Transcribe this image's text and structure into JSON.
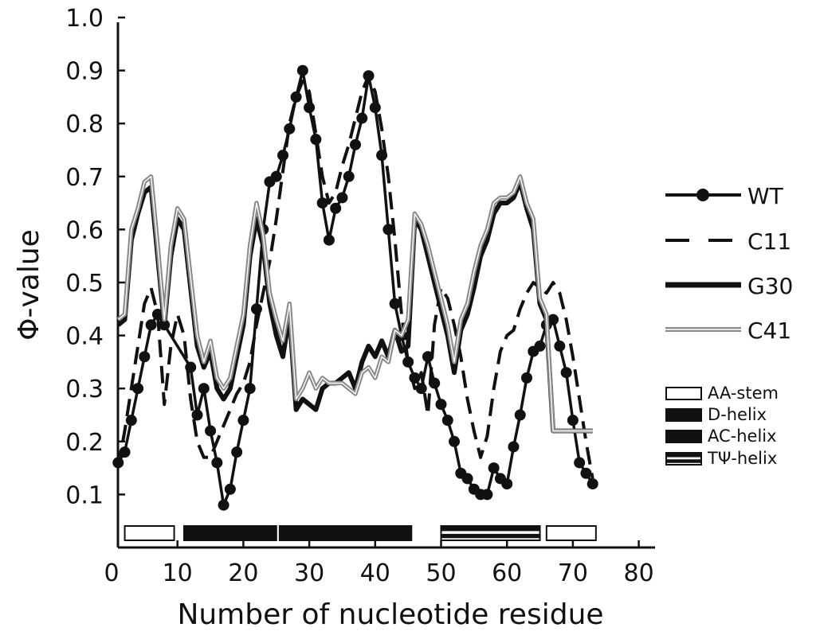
{
  "chart_data": {
    "type": "line",
    "xlabel": "Number of nucleotide residue",
    "ylabel": "Φ-value",
    "xlim": [
      0,
      80
    ],
    "ylim": [
      0.0,
      1.0
    ],
    "x_ticks": [
      0,
      10,
      20,
      30,
      40,
      50,
      60,
      70,
      80
    ],
    "y_ticks": [
      0.1,
      0.2,
      0.3,
      0.4,
      0.5,
      0.6,
      0.7,
      0.8,
      0.9,
      1.0
    ],
    "grid": false,
    "legend_position": "right",
    "series": [
      {
        "name": "WT",
        "color": "#111111",
        "style": "solid-markers",
        "x": [
          1,
          2,
          3,
          4,
          5,
          6,
          7,
          8,
          12,
          13,
          14,
          15,
          16,
          17,
          18,
          19,
          20,
          21,
          22,
          23,
          24,
          25,
          26,
          27,
          28,
          29,
          30,
          31,
          32,
          33,
          34,
          35,
          36,
          37,
          38,
          39,
          40,
          41,
          42,
          43,
          44,
          45,
          46,
          47,
          48,
          49,
          50,
          51,
          52,
          53,
          54,
          55,
          56,
          57,
          58,
          59,
          60,
          61,
          62,
          63,
          64,
          65,
          66,
          67,
          68,
          69,
          70,
          71,
          72,
          73
        ],
        "y": [
          0.16,
          0.18,
          0.24,
          0.3,
          0.36,
          0.42,
          0.44,
          0.42,
          0.34,
          0.25,
          0.3,
          0.22,
          0.16,
          0.08,
          0.11,
          0.18,
          0.24,
          0.3,
          0.45,
          0.6,
          0.69,
          0.7,
          0.74,
          0.79,
          0.85,
          0.9,
          0.83,
          0.77,
          0.65,
          0.58,
          0.64,
          0.66,
          0.7,
          0.76,
          0.81,
          0.89,
          0.83,
          0.74,
          0.6,
          0.46,
          0.4,
          0.35,
          0.32,
          0.3,
          0.36,
          0.31,
          0.27,
          0.24,
          0.2,
          0.14,
          0.13,
          0.11,
          0.1,
          0.1,
          0.15,
          0.13,
          0.12,
          0.19,
          0.25,
          0.32,
          0.37,
          0.38,
          0.42,
          0.43,
          0.38,
          0.33,
          0.24,
          0.16,
          0.14,
          0.12
        ]
      },
      {
        "name": "C11",
        "color": "#111111",
        "style": "dashed",
        "x": [
          1,
          2,
          3,
          4,
          5,
          6,
          7,
          8,
          9,
          10,
          11,
          12,
          13,
          14,
          15,
          16,
          17,
          18,
          19,
          20,
          21,
          22,
          23,
          24,
          25,
          26,
          27,
          28,
          29,
          30,
          31,
          32,
          33,
          34,
          35,
          36,
          37,
          38,
          39,
          40,
          41,
          42,
          43,
          44,
          45,
          46,
          47,
          48,
          49,
          50,
          51,
          52,
          53,
          54,
          55,
          56,
          57,
          58,
          59,
          60,
          61,
          62,
          63,
          64,
          65,
          66,
          67,
          68,
          69,
          70,
          71,
          72,
          73
        ],
        "y": [
          0.15,
          0.22,
          0.3,
          0.38,
          0.46,
          0.49,
          0.44,
          0.27,
          0.38,
          0.44,
          0.4,
          0.28,
          0.2,
          0.17,
          0.17,
          0.2,
          0.23,
          0.26,
          0.29,
          0.31,
          0.35,
          0.42,
          0.48,
          0.54,
          0.62,
          0.71,
          0.8,
          0.85,
          0.88,
          0.86,
          0.78,
          0.7,
          0.65,
          0.67,
          0.72,
          0.76,
          0.81,
          0.86,
          0.89,
          0.86,
          0.79,
          0.7,
          0.58,
          0.44,
          0.35,
          0.3,
          0.33,
          0.25,
          0.42,
          0.49,
          0.47,
          0.42,
          0.36,
          0.28,
          0.22,
          0.17,
          0.21,
          0.3,
          0.37,
          0.4,
          0.41,
          0.45,
          0.48,
          0.5,
          0.49,
          0.48,
          0.5,
          0.48,
          0.43,
          0.36,
          0.28,
          0.2,
          0.13
        ]
      },
      {
        "name": "G30",
        "color": "#111111",
        "style": "thick-solid",
        "x": [
          1,
          2,
          3,
          4,
          5,
          6,
          7,
          8,
          9,
          10,
          11,
          12,
          13,
          14,
          15,
          16,
          17,
          18,
          19,
          20,
          21,
          22,
          23,
          24,
          25,
          26,
          27,
          28,
          29,
          30,
          31,
          32,
          33,
          34,
          35,
          36,
          37,
          38,
          39,
          40,
          41,
          42,
          43,
          44,
          45,
          46,
          47,
          48,
          49,
          50,
          51,
          52,
          53,
          54,
          55,
          56,
          57,
          58,
          59,
          60,
          61,
          62,
          63,
          64,
          65,
          66,
          67,
          68,
          69,
          70,
          71,
          72,
          73
        ],
        "y": [
          0.42,
          0.43,
          0.58,
          0.63,
          0.67,
          0.68,
          0.55,
          0.42,
          0.55,
          0.62,
          0.6,
          0.49,
          0.38,
          0.34,
          0.37,
          0.3,
          0.28,
          0.3,
          0.36,
          0.42,
          0.55,
          0.62,
          0.57,
          0.46,
          0.4,
          0.36,
          0.44,
          0.26,
          0.28,
          0.27,
          0.26,
          0.3,
          0.31,
          0.31,
          0.32,
          0.33,
          0.3,
          0.35,
          0.38,
          0.36,
          0.39,
          0.36,
          0.41,
          0.37,
          0.38,
          0.62,
          0.6,
          0.55,
          0.5,
          0.45,
          0.4,
          0.33,
          0.41,
          0.44,
          0.49,
          0.55,
          0.58,
          0.63,
          0.65,
          0.65,
          0.66,
          0.69,
          0.64,
          0.6,
          0.46,
          0.43,
          0.22,
          0.22,
          0.22,
          0.22,
          0.22,
          0.22,
          0.22
        ]
      },
      {
        "name": "C41",
        "color": "#8a8a8a",
        "style": "double",
        "x": [
          1,
          2,
          3,
          4,
          5,
          6,
          7,
          8,
          9,
          10,
          11,
          12,
          13,
          14,
          15,
          16,
          17,
          18,
          19,
          20,
          21,
          22,
          23,
          24,
          25,
          26,
          27,
          28,
          29,
          30,
          31,
          32,
          33,
          34,
          35,
          36,
          37,
          38,
          39,
          40,
          41,
          42,
          43,
          44,
          45,
          46,
          47,
          48,
          49,
          50,
          51,
          52,
          53,
          54,
          55,
          56,
          57,
          58,
          59,
          60,
          61,
          62,
          63,
          64,
          65,
          66,
          67,
          68,
          69,
          70,
          71,
          72,
          73
        ],
        "y": [
          0.43,
          0.44,
          0.6,
          0.64,
          0.69,
          0.7,
          0.57,
          0.43,
          0.57,
          0.64,
          0.62,
          0.51,
          0.4,
          0.35,
          0.39,
          0.32,
          0.3,
          0.32,
          0.38,
          0.44,
          0.57,
          0.65,
          0.59,
          0.48,
          0.43,
          0.39,
          0.46,
          0.28,
          0.3,
          0.33,
          0.3,
          0.32,
          0.31,
          0.31,
          0.31,
          0.3,
          0.29,
          0.33,
          0.34,
          0.32,
          0.36,
          0.35,
          0.41,
          0.4,
          0.43,
          0.63,
          0.61,
          0.57,
          0.52,
          0.47,
          0.42,
          0.35,
          0.43,
          0.46,
          0.52,
          0.57,
          0.6,
          0.65,
          0.66,
          0.66,
          0.67,
          0.7,
          0.65,
          0.62,
          0.47,
          0.44,
          0.22,
          0.22,
          0.22,
          0.22,
          0.22,
          0.22,
          0.22
        ]
      }
    ],
    "regions": [
      {
        "name": "AA-stem",
        "style": "white",
        "start": 2,
        "end": 9.5
      },
      {
        "name": "D-helix",
        "style": "black",
        "start": 11,
        "end": 25
      },
      {
        "name": "AC-helix",
        "style": "black",
        "start": 25.5,
        "end": 45.5
      },
      {
        "name": "TΨ-helix",
        "style": "striped",
        "start": 50,
        "end": 65
      },
      {
        "name": "AA-stem",
        "style": "white",
        "start": 66,
        "end": 73.5
      }
    ],
    "region_legend": [
      {
        "label": "AA-stem",
        "style": "white"
      },
      {
        "label": "D-helix",
        "style": "black"
      },
      {
        "label": "AC-helix",
        "style": "black"
      },
      {
        "label": "TΨ-helix",
        "style": "striped"
      }
    ]
  }
}
